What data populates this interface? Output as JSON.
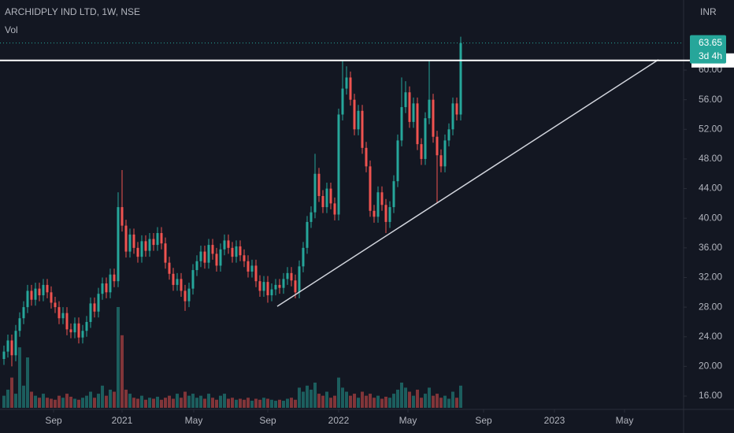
{
  "chart_data": {
    "type": "candlestick",
    "title": "ARCHIDPLY IND LTD, 1W, NSE",
    "volume_label": "Vol",
    "currency": "INR",
    "x": [
      0,
      1,
      2,
      3,
      4,
      5,
      6,
      7,
      8,
      9,
      10,
      11,
      12,
      13,
      14,
      15,
      16,
      17,
      18,
      19,
      20,
      21,
      22,
      23,
      24,
      25,
      26,
      27,
      28,
      29,
      30,
      31,
      32,
      33,
      34,
      35,
      36,
      37,
      38,
      39,
      40,
      41,
      42,
      43,
      44,
      45,
      46,
      47,
      48,
      49,
      50,
      51,
      52,
      53,
      54,
      55,
      56,
      57,
      58,
      59,
      60,
      61,
      62,
      63,
      64,
      65,
      66,
      67,
      68,
      69,
      70,
      71,
      72,
      73,
      74,
      75,
      76,
      77,
      78,
      79,
      80,
      81,
      82,
      83,
      84,
      85,
      86,
      87,
      88,
      89,
      90,
      91,
      92,
      93,
      94,
      95,
      96,
      97,
      98,
      99,
      100,
      101,
      102,
      103,
      104,
      105,
      106,
      107,
      108,
      109,
      110,
      111,
      112,
      113,
      114,
      115,
      116
    ],
    "open": [
      21.0,
      22.0,
      23.5,
      21.5,
      24.8,
      26.5,
      28.0,
      30.2,
      29.0,
      30.5,
      29.6,
      31.0,
      30.0,
      28.6,
      28.0,
      26.5,
      27.2,
      25.0,
      24.6,
      25.8,
      23.9,
      24.8,
      26.0,
      28.5,
      27.4,
      29.8,
      31.2,
      30.0,
      32.4,
      31.5,
      41.5,
      39.0,
      35.5,
      37.8,
      36.0,
      34.8,
      36.9,
      35.6,
      37.2,
      36.4,
      38.0,
      36.6,
      34.0,
      32.5,
      31.0,
      31.8,
      30.2,
      28.8,
      30.5,
      33.0,
      34.2,
      35.5,
      34.0,
      36.4,
      35.2,
      33.6,
      35.8,
      37.0,
      36.0,
      34.8,
      36.2,
      35.0,
      34.2,
      32.8,
      33.6,
      31.5,
      30.2,
      31.4,
      29.6,
      30.4,
      31.0,
      30.6,
      31.8,
      32.6,
      31.6,
      30.0,
      33.5,
      36.0,
      39.5,
      40.8,
      46.0,
      43.0,
      41.5,
      44.0,
      42.0,
      40.5,
      54.0,
      57.5,
      59.0,
      56.0,
      52.0,
      54.5,
      49.5,
      47.0,
      41.0,
      40.2,
      43.5,
      41.8,
      39.5,
      41.5,
      45.0,
      50.5,
      55.0,
      57.0,
      53.0,
      55.5,
      50.0,
      48.0,
      53.5,
      56.0,
      51.0,
      48.5,
      47.0,
      50.5,
      52.0,
      55.5,
      54.0
    ],
    "high": [
      22.8,
      24.3,
      24.3,
      25.6,
      27.3,
      28.8,
      31.0,
      31.0,
      31.3,
      31.3,
      31.8,
      31.8,
      30.8,
      29.4,
      28.8,
      28.0,
      28.0,
      25.8,
      26.6,
      26.6,
      25.6,
      26.8,
      29.3,
      29.3,
      30.6,
      32.0,
      32.0,
      33.2,
      33.2,
      43.5,
      46.5,
      39.8,
      38.6,
      38.6,
      36.8,
      37.7,
      37.7,
      38.0,
      38.0,
      38.8,
      38.8,
      37.4,
      34.8,
      33.3,
      32.6,
      32.6,
      31.0,
      31.3,
      33.8,
      35.0,
      36.3,
      36.3,
      37.2,
      37.2,
      36.0,
      36.6,
      37.8,
      37.8,
      36.8,
      37.0,
      37.0,
      35.8,
      35.0,
      34.4,
      34.4,
      32.3,
      32.2,
      32.2,
      31.2,
      31.8,
      31.8,
      32.6,
      33.4,
      33.4,
      32.4,
      34.3,
      36.8,
      40.3,
      41.6,
      48.7,
      46.8,
      43.8,
      44.8,
      44.8,
      42.8,
      54.8,
      61.3,
      60.5,
      59.8,
      56.8,
      55.3,
      55.3,
      50.3,
      47.8,
      41.8,
      44.3,
      44.3,
      42.6,
      42.3,
      45.8,
      51.3,
      59.0,
      58.5,
      57.8,
      56.3,
      56.3,
      50.8,
      54.3,
      61.3,
      56.8,
      51.8,
      49.3,
      51.3,
      52.8,
      56.3,
      56.3,
      64.5
    ],
    "low": [
      20.2,
      21.2,
      20.0,
      20.7,
      24.0,
      25.7,
      27.2,
      28.2,
      28.2,
      28.8,
      28.8,
      29.2,
      27.8,
      27.2,
      25.7,
      25.7,
      24.2,
      23.8,
      23.8,
      23.1,
      23.1,
      24.0,
      25.2,
      26.6,
      26.6,
      29.0,
      29.2,
      29.2,
      30.7,
      30.7,
      38.2,
      34.7,
      34.7,
      35.2,
      34.0,
      34.0,
      34.8,
      34.8,
      35.6,
      35.6,
      35.8,
      33.2,
      31.7,
      30.2,
      30.2,
      29.4,
      27.5,
      28.0,
      29.7,
      32.2,
      33.4,
      33.2,
      33.2,
      34.4,
      32.8,
      32.8,
      35.0,
      35.2,
      34.0,
      34.0,
      34.2,
      33.4,
      32.0,
      32.0,
      30.7,
      29.4,
      29.4,
      28.6,
      28.8,
      29.6,
      29.8,
      29.8,
      31.0,
      30.8,
      29.2,
      29.2,
      32.7,
      35.2,
      38.7,
      40.0,
      42.2,
      40.7,
      40.7,
      41.2,
      39.7,
      39.7,
      53.2,
      56.7,
      55.2,
      51.2,
      51.2,
      48.7,
      46.2,
      40.2,
      39.4,
      39.4,
      41.0,
      38.0,
      38.7,
      40.7,
      44.2,
      49.7,
      54.2,
      52.2,
      52.2,
      49.2,
      47.2,
      47.2,
      52.7,
      50.2,
      42.0,
      46.2,
      46.2,
      49.7,
      51.2,
      53.2,
      53.2
    ],
    "close": [
      22.0,
      23.5,
      21.5,
      24.8,
      26.5,
      28.0,
      30.2,
      29.0,
      30.5,
      29.6,
      31.0,
      30.0,
      28.6,
      28.0,
      26.5,
      27.2,
      25.0,
      24.6,
      25.8,
      23.9,
      24.8,
      26.0,
      28.5,
      27.4,
      29.8,
      31.2,
      30.0,
      32.4,
      31.5,
      41.5,
      39.0,
      35.5,
      37.8,
      36.0,
      34.8,
      36.9,
      35.6,
      37.2,
      36.4,
      38.0,
      36.6,
      34.0,
      32.5,
      31.0,
      31.8,
      30.2,
      28.8,
      30.5,
      33.0,
      34.2,
      35.5,
      34.0,
      36.4,
      35.2,
      33.6,
      35.8,
      37.0,
      36.0,
      34.8,
      36.2,
      35.0,
      34.2,
      32.8,
      33.6,
      31.5,
      30.2,
      31.4,
      29.6,
      30.4,
      31.0,
      30.6,
      31.8,
      32.6,
      31.6,
      30.0,
      33.5,
      36.0,
      39.5,
      40.8,
      46.0,
      43.0,
      41.5,
      44.0,
      42.0,
      40.5,
      54.0,
      57.5,
      59.0,
      56.0,
      52.0,
      54.5,
      49.5,
      47.0,
      41.0,
      40.2,
      43.5,
      41.8,
      39.5,
      41.5,
      45.0,
      50.5,
      55.0,
      57.0,
      53.0,
      55.5,
      50.0,
      48.0,
      53.5,
      56.0,
      51.0,
      48.5,
      47.0,
      50.5,
      52.0,
      55.5,
      54.0,
      63.65
    ],
    "volume": [
      12,
      18,
      30,
      14,
      60,
      22,
      50,
      16,
      12,
      10,
      14,
      10,
      9,
      8,
      12,
      10,
      14,
      11,
      9,
      8,
      10,
      12,
      16,
      10,
      14,
      22,
      12,
      18,
      16,
      100,
      72,
      18,
      14,
      10,
      9,
      12,
      8,
      10,
      9,
      11,
      8,
      10,
      12,
      9,
      14,
      10,
      16,
      12,
      14,
      10,
      12,
      9,
      14,
      10,
      8,
      12,
      14,
      9,
      10,
      8,
      9,
      8,
      10,
      7,
      9,
      8,
      10,
      9,
      8,
      7,
      8,
      7,
      9,
      10,
      8,
      20,
      16,
      22,
      18,
      25,
      14,
      12,
      16,
      10,
      12,
      30,
      20,
      16,
      12,
      14,
      10,
      16,
      12,
      14,
      10,
      12,
      9,
      11,
      10,
      14,
      18,
      25,
      20,
      16,
      12,
      18,
      10,
      14,
      20,
      12,
      14,
      10,
      12,
      9,
      16,
      10,
      22
    ],
    "colors": {
      "up": "#26a69a",
      "down": "#ef5350"
    },
    "xlim": [
      -1,
      172.6
    ],
    "xticks": [
      {
        "value": 12.6,
        "label": "Sep"
      },
      {
        "value": 30,
        "label": "2021"
      },
      {
        "value": 48.2,
        "label": "May"
      },
      {
        "value": 67,
        "label": "Sep"
      },
      {
        "value": 85,
        "label": "2022"
      },
      {
        "value": 102.6,
        "label": "May"
      },
      {
        "value": 121.8,
        "label": "Sep"
      },
      {
        "value": 139.8,
        "label": "2023"
      },
      {
        "value": 157.6,
        "label": "May"
      }
    ],
    "ylim": [
      14.41,
      69.46
    ],
    "yticks": [
      {
        "value": 16,
        "label": "16.00"
      },
      {
        "value": 20,
        "label": "20.00"
      },
      {
        "value": 24,
        "label": "24.00"
      },
      {
        "value": 28,
        "label": "28.00"
      },
      {
        "value": 32,
        "label": "32.00"
      },
      {
        "value": 36,
        "label": "36.00"
      },
      {
        "value": 40,
        "label": "40.00"
      },
      {
        "value": 44,
        "label": "44.00"
      },
      {
        "value": 48,
        "label": "48.00"
      },
      {
        "value": 52,
        "label": "52.00"
      },
      {
        "value": 56,
        "label": "56.00"
      },
      {
        "value": 60,
        "label": "60.00"
      }
    ],
    "countdown": "3d 4h",
    "horizontal_line": 61.3,
    "trendline": {
      "x": [
        69.4,
        166.2
      ],
      "y": [
        28.1,
        61.4
      ]
    }
  }
}
